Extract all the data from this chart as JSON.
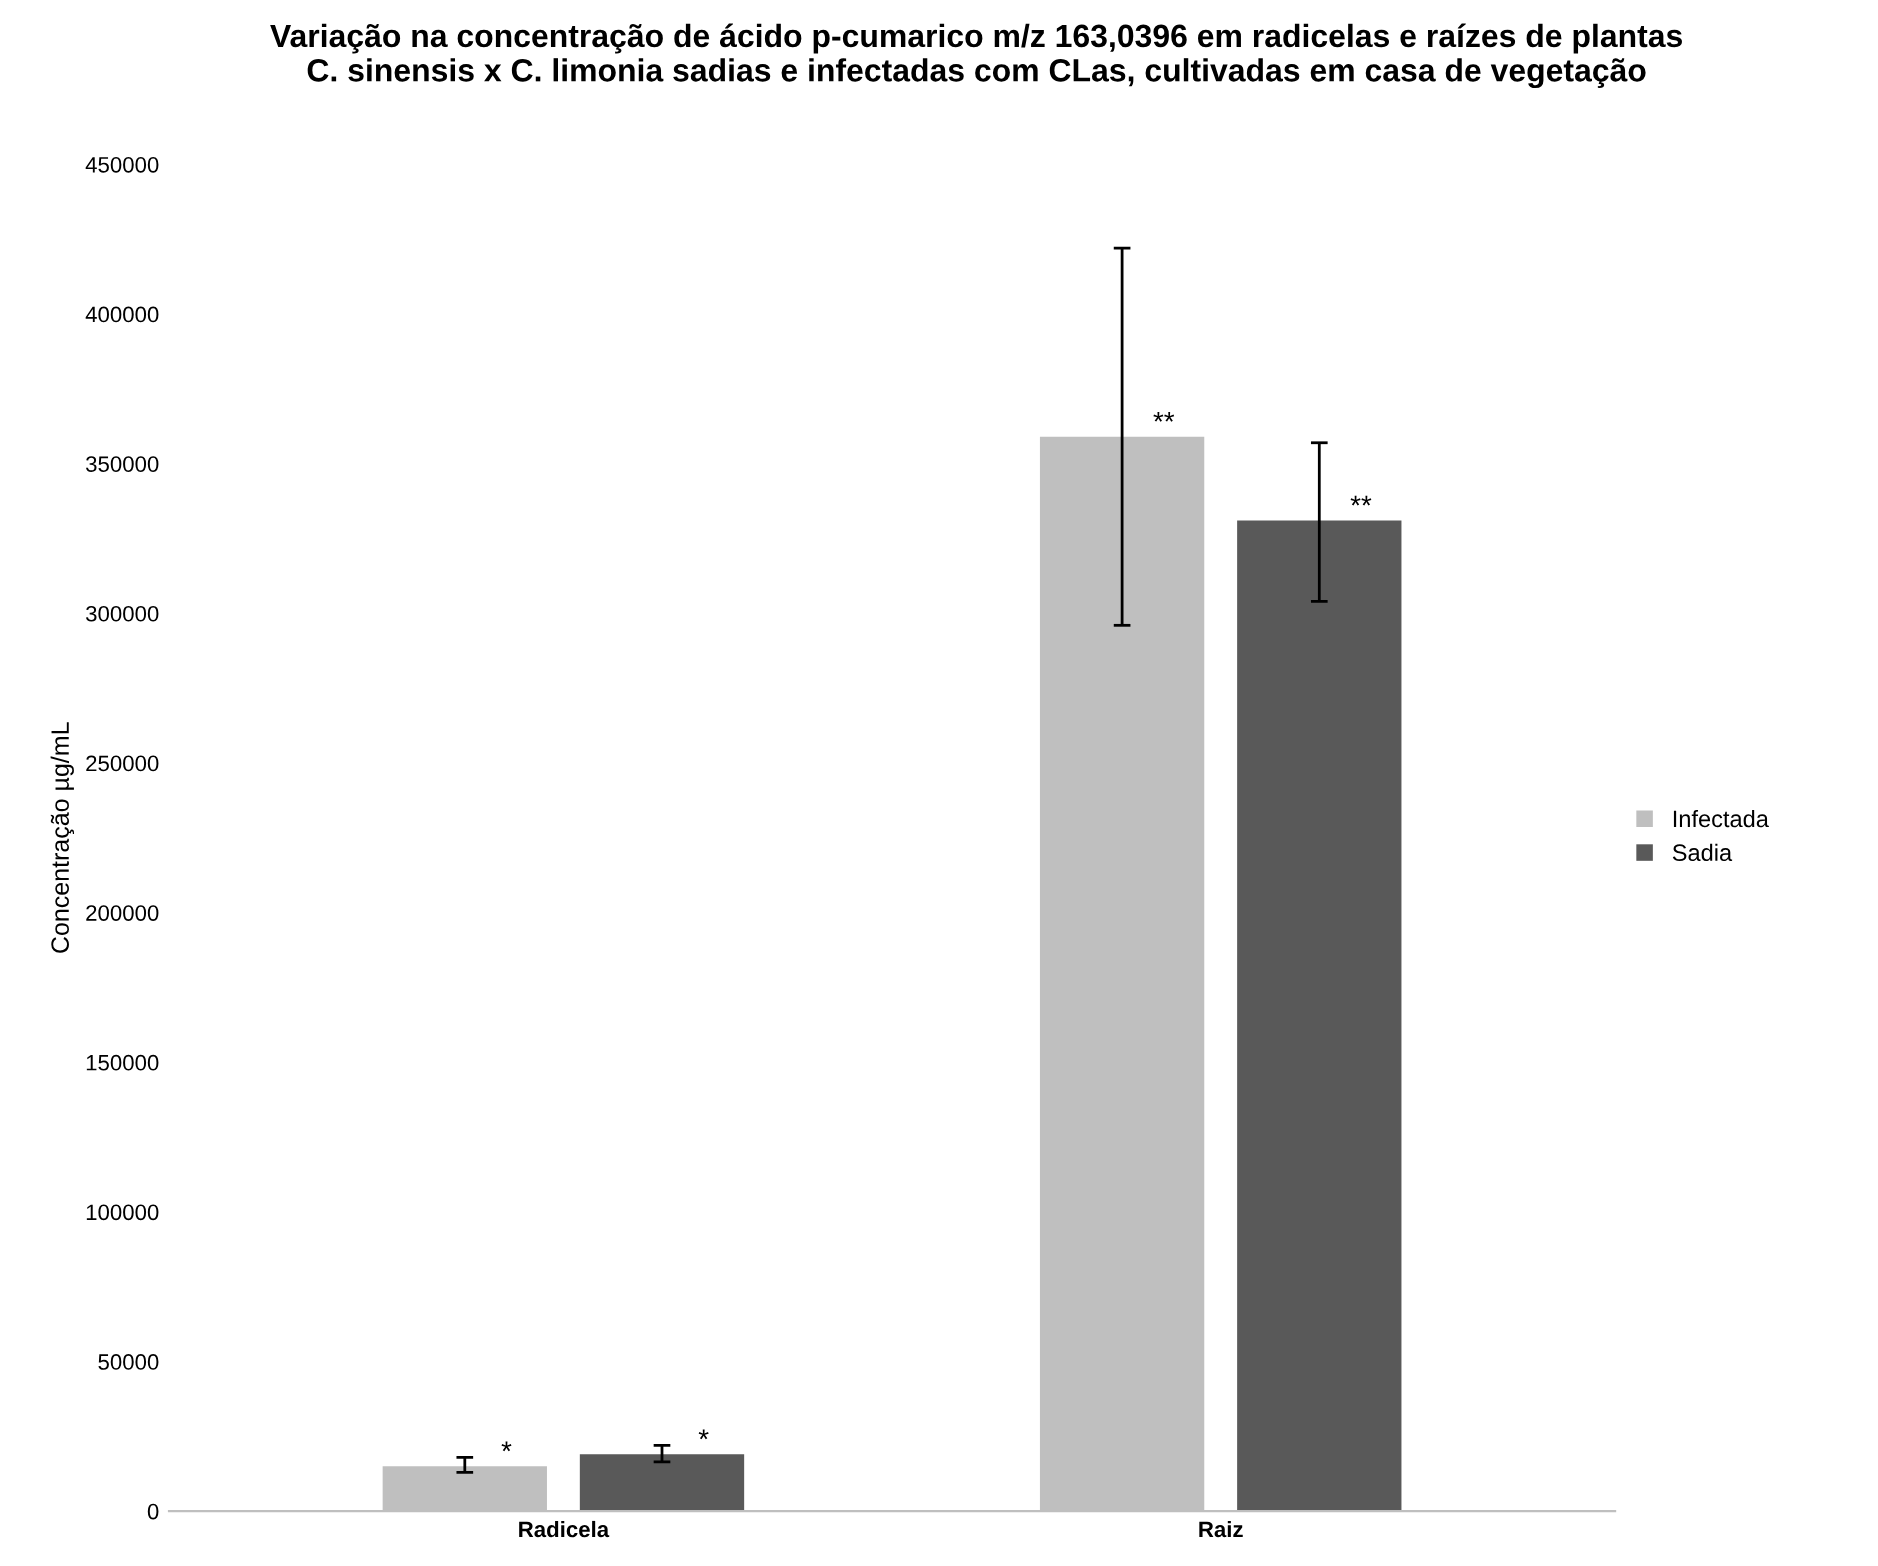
{
  "chart_data": {
    "type": "bar",
    "title": "Variação na concentração de ácido p-cumarico m/z 163,0396 em radicelas e raízes de plantas\nC. sinensis x C. limonia sadias e infectadas com CLas, cultivadas em casa de vegetação",
    "ylabel": "Concentração µg/mL",
    "categories": [
      "Radicela",
      "Raiz"
    ],
    "series": [
      {
        "name": "Infectada",
        "color": "#bfbfbf",
        "values": [
          15000,
          359000
        ],
        "value_labels": [
          "*",
          "**"
        ],
        "errors": [
          [
            13000,
            18000
          ],
          [
            296000,
            422000
          ]
        ]
      },
      {
        "name": "Sadia",
        "color": "#595959",
        "values": [
          19000,
          331000
        ],
        "value_labels": [
          "*",
          "**"
        ],
        "errors": [
          [
            16500,
            22000
          ],
          [
            304000,
            357000
          ]
        ]
      }
    ],
    "ylim": [
      0,
      450000
    ],
    "yticks": [
      0,
      50000,
      100000,
      150000,
      200000,
      250000,
      300000,
      350000,
      400000,
      450000
    ],
    "grid": false,
    "legend": "right"
  }
}
